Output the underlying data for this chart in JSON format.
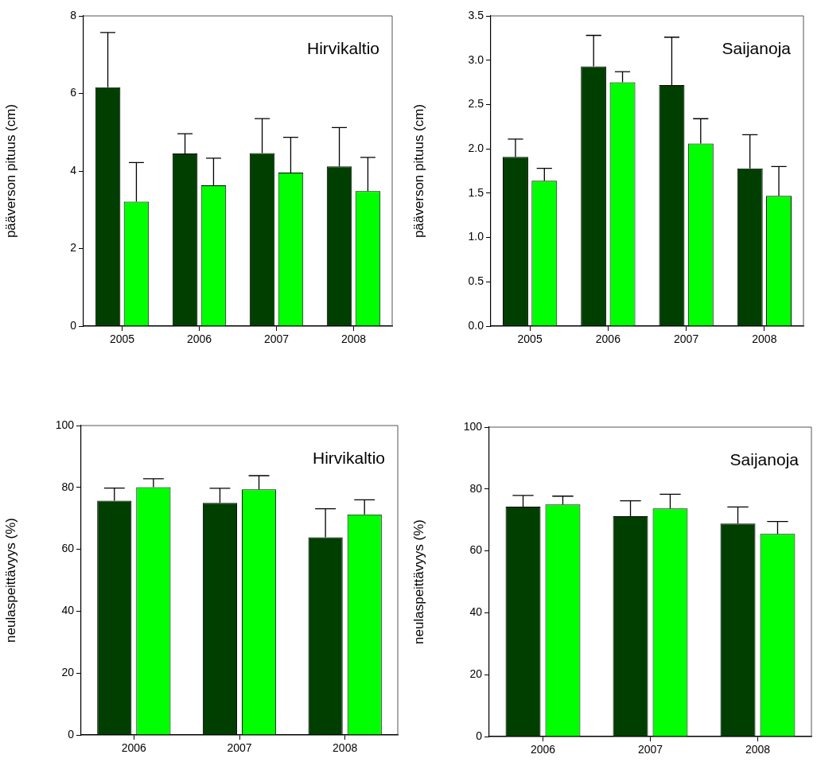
{
  "chart_data": [
    {
      "type": "bar",
      "ylabel": "pääverson pituus (cm)",
      "annotations": [
        "Hirvikaltio"
      ],
      "categories": [
        "2005",
        "2006",
        "2007",
        "2008"
      ],
      "ylim": [
        0,
        8
      ],
      "yticks": [
        0,
        2,
        4,
        6,
        8
      ],
      "grid": false,
      "legend": false,
      "series": [
        {
          "color": "#003f00",
          "values": [
            6.16,
            4.45,
            4.46,
            4.12
          ],
          "errors": [
            [
              6.16,
              7.57
            ],
            [
              4.45,
              4.96
            ],
            [
              4.46,
              5.35
            ],
            [
              4.12,
              5.12
            ]
          ]
        },
        {
          "color": "#00ff00",
          "values": [
            3.21,
            3.63,
            3.96,
            3.48
          ],
          "errors": [
            [
              3.21,
              4.22
            ],
            [
              3.63,
              4.33
            ],
            [
              3.96,
              4.87
            ],
            [
              3.48,
              4.35
            ]
          ]
        }
      ]
    },
    {
      "type": "bar",
      "ylabel": "pääverson pituus (cm)",
      "annotations": [
        "Saijanoja"
      ],
      "categories": [
        "2005",
        "2006",
        "2007",
        "2008"
      ],
      "ylim": [
        0,
        3.5
      ],
      "yticks": [
        {
          "value": 0,
          "label": "0.0"
        },
        {
          "value": 0.5,
          "label": "0.5"
        },
        {
          "value": 1,
          "label": "1.0"
        },
        {
          "value": 1.5,
          "label": "1.5"
        },
        {
          "value": 2,
          "label": "2.0"
        },
        {
          "value": 2.5,
          "label": "2.5"
        },
        {
          "value": 3,
          "label": "3.0"
        },
        {
          "value": 3.5,
          "label": "3.5"
        }
      ],
      "grid": false,
      "legend": false,
      "series": [
        {
          "color": "#003f00",
          "values": [
            1.91,
            2.93,
            2.72,
            1.78
          ],
          "errors": [
            [
              1.91,
              2.11
            ],
            [
              2.93,
              3.28
            ],
            [
              2.72,
              3.26
            ],
            [
              1.78,
              2.16
            ]
          ]
        },
        {
          "color": "#00ff00",
          "values": [
            1.64,
            2.75,
            2.06,
            1.47
          ],
          "errors": [
            [
              1.64,
              1.78
            ],
            [
              2.75,
              2.87
            ],
            [
              2.06,
              2.34
            ],
            [
              1.47,
              1.8
            ]
          ]
        }
      ]
    },
    {
      "type": "bar",
      "ylabel": "neulaspeittävyys (%)",
      "annotations": [
        "Hirvikaltio"
      ],
      "categories": [
        "2006",
        "2007",
        "2008"
      ],
      "ylim": [
        0,
        100
      ],
      "yticks": [
        0,
        20,
        40,
        60,
        80,
        100
      ],
      "grid": false,
      "legend": false,
      "series": [
        {
          "color": "#003f00",
          "values": [
            75.7,
            75,
            63.9
          ],
          "errors": [
            [
              75.7,
              79.8
            ],
            [
              75,
              79.7
            ],
            [
              63.9,
              73.1
            ]
          ]
        },
        {
          "color": "#00ff00",
          "values": [
            80.1,
            79.4,
            71.3
          ],
          "errors": [
            [
              80.1,
              82.8
            ],
            [
              79.4,
              83.8
            ],
            [
              71.3,
              76
            ]
          ]
        }
      ]
    },
    {
      "type": "bar",
      "ylabel": "neulaspeittävyys (%)",
      "annotations": [
        "Saijanoja"
      ],
      "categories": [
        "2006",
        "2007",
        "2008"
      ],
      "ylim": [
        0,
        100
      ],
      "yticks": [
        0,
        20,
        40,
        60,
        80,
        100
      ],
      "grid": false,
      "legend": false,
      "series": [
        {
          "color": "#003f00",
          "values": [
            74.3,
            71.2,
            68.8
          ],
          "errors": [
            [
              74.3,
              77.9
            ],
            [
              71.2,
              76.2
            ],
            [
              68.8,
              74.2
            ]
          ]
        },
        {
          "color": "#00ff00",
          "values": [
            75,
            73.7,
            65.5
          ],
          "errors": [
            [
              75,
              77.7
            ],
            [
              73.7,
              78.3
            ],
            [
              65.5,
              69.5
            ]
          ]
        }
      ]
    }
  ]
}
